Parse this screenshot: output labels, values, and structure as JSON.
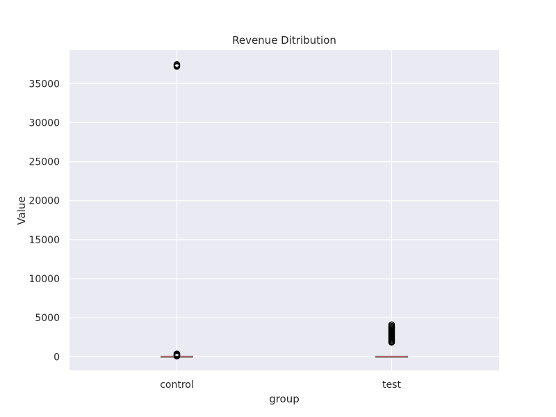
{
  "chart_data": {
    "type": "box",
    "title": "Revenue Ditribution",
    "xlabel": "group",
    "ylabel": "Value",
    "categories": [
      "control",
      "test"
    ],
    "ylim": [
      -1750,
      39300
    ],
    "yticks": [
      0,
      5000,
      10000,
      15000,
      20000,
      25000,
      30000,
      35000
    ],
    "ytick_labels": [
      "0",
      "5000",
      "10000",
      "15000",
      "20000",
      "25000",
      "30000",
      "35000"
    ],
    "grid": true,
    "background_color": "#eaeaf2",
    "grid_color": "#ffffff",
    "median_color": "#c44e52",
    "box_color": "#888888",
    "series": [
      {
        "category": "control",
        "q1": 0,
        "median": 0,
        "q3": 0,
        "whisker_low": 0,
        "whisker_high": 0,
        "outliers": [
          37450,
          37300,
          37200,
          380,
          300,
          230,
          170,
          120,
          70
        ]
      },
      {
        "category": "test",
        "q1": 0,
        "median": 0,
        "q3": 0,
        "whisker_low": 0,
        "whisker_high": 0,
        "outliers": [
          4100,
          3900,
          3750,
          3600,
          3450,
          3300,
          3150,
          3000,
          2850,
          2700,
          2550,
          2400,
          2250,
          2100,
          1950,
          1850
        ]
      }
    ]
  }
}
